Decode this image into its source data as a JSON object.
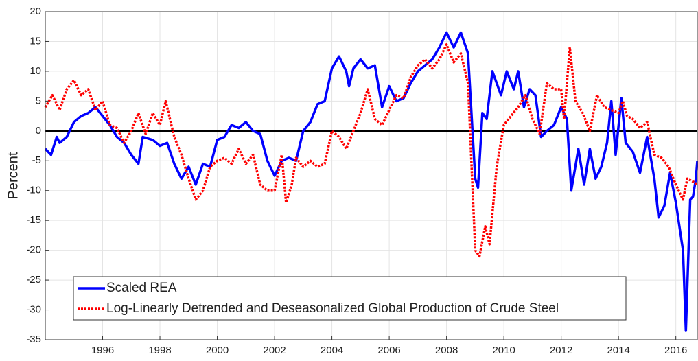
{
  "chart_data": {
    "type": "line",
    "y_label": "Percent",
    "xlim": [
      1994,
      2016.75
    ],
    "xticks": [
      1996,
      1998,
      2000,
      2002,
      2004,
      2006,
      2008,
      2010,
      2012,
      2014,
      2016
    ],
    "ylim": [
      -35,
      20
    ],
    "yticks": [
      20,
      15,
      10,
      5,
      0,
      -5,
      -10,
      -15,
      -20,
      -25,
      -30,
      -35
    ],
    "grid": true,
    "reference_line": 0,
    "legend": "lower-left",
    "series": [
      {
        "name": "Scaled REA",
        "color": "#0000ff",
        "style": "solid",
        "x": [
          1994.0,
          1994.2,
          1994.4,
          1994.5,
          1994.75,
          1995.0,
          1995.25,
          1995.5,
          1995.75,
          1996.0,
          1996.25,
          1996.5,
          1996.75,
          1997.0,
          1997.25,
          1997.4,
          1997.75,
          1998.0,
          1998.25,
          1998.5,
          1998.75,
          1999.0,
          1999.25,
          1999.5,
          1999.75,
          2000.0,
          2000.25,
          2000.5,
          2000.75,
          2001.0,
          2001.25,
          2001.5,
          2001.75,
          2002.0,
          2002.25,
          2002.5,
          2002.75,
          2003.0,
          2003.25,
          2003.5,
          2003.75,
          2004.0,
          2004.25,
          2004.5,
          2004.6,
          2004.75,
          2005.0,
          2005.25,
          2005.5,
          2005.75,
          2006.0,
          2006.25,
          2006.5,
          2006.75,
          2007.0,
          2007.25,
          2007.5,
          2007.75,
          2008.0,
          2008.25,
          2008.5,
          2008.75,
          2009.0,
          2009.1,
          2009.25,
          2009.4,
          2009.6,
          2009.9,
          2010.1,
          2010.35,
          2010.5,
          2010.7,
          2010.9,
          2011.1,
          2011.3,
          2011.5,
          2011.75,
          2012.0,
          2012.2,
          2012.35,
          2012.6,
          2012.8,
          2013.0,
          2013.2,
          2013.4,
          2013.6,
          2013.75,
          2013.9,
          2014.1,
          2014.25,
          2014.5,
          2014.75,
          2015.0,
          2015.25,
          2015.4,
          2015.6,
          2015.8,
          2016.0,
          2016.25,
          2016.35,
          2016.5,
          2016.6,
          2016.7,
          2016.75
        ],
        "values": [
          -3,
          -4,
          -1,
          -2,
          -1,
          1.5,
          2.5,
          3,
          4,
          2.5,
          1,
          -1,
          -2,
          -4,
          -5.5,
          -1,
          -1.5,
          -2.5,
          -2,
          -5.5,
          -8,
          -6,
          -9,
          -5.5,
          -6,
          -1.5,
          -1,
          1,
          0.5,
          1.5,
          0,
          -0.5,
          -5,
          -7.5,
          -5,
          -4.5,
          -5,
          0,
          1.5,
          4.5,
          5,
          10.5,
          12.5,
          10,
          7.5,
          10.5,
          12,
          10.5,
          11,
          4,
          7.5,
          5,
          5.5,
          8,
          10,
          11,
          12,
          14,
          16.5,
          14,
          16.5,
          13,
          -8,
          -9.5,
          3,
          2,
          10,
          6,
          10,
          7,
          10,
          4,
          7,
          6,
          -1,
          0,
          1,
          4,
          2,
          -10,
          -3,
          -9,
          -3,
          -8,
          -6,
          -2,
          5,
          -4,
          5.5,
          -2,
          -3.5,
          -7,
          -1,
          -8,
          -14.5,
          -12.5,
          -7,
          -12,
          -20,
          -33.5,
          -11.5,
          -11,
          -8,
          -5
        ]
      },
      {
        "name": "Log-Linearly Detrended and Deseasonalized Global Production of Crude Steel",
        "color": "#ff0000",
        "style": "dotted",
        "x": [
          1994.0,
          1994.25,
          1994.5,
          1994.75,
          1995.0,
          1995.25,
          1995.5,
          1995.75,
          1996.0,
          1996.25,
          1996.5,
          1996.75,
          1997.0,
          1997.25,
          1997.5,
          1997.75,
          1998.0,
          1998.2,
          1998.5,
          1998.75,
          1999.0,
          1999.25,
          1999.5,
          1999.75,
          2000.0,
          2000.25,
          2000.5,
          2000.75,
          2001.0,
          2001.25,
          2001.5,
          2001.75,
          2002.0,
          2002.25,
          2002.4,
          2002.6,
          2002.75,
          2003.0,
          2003.25,
          2003.5,
          2003.75,
          2004.0,
          2004.25,
          2004.5,
          2004.75,
          2005.0,
          2005.25,
          2005.5,
          2005.75,
          2006.0,
          2006.25,
          2006.5,
          2006.75,
          2007.0,
          2007.25,
          2007.5,
          2007.75,
          2008.0,
          2008.25,
          2008.5,
          2008.75,
          2009.0,
          2009.15,
          2009.35,
          2009.5,
          2009.75,
          2010.0,
          2010.25,
          2010.5,
          2010.75,
          2011.0,
          2011.25,
          2011.5,
          2011.75,
          2012.0,
          2012.1,
          2012.3,
          2012.5,
          2012.75,
          2013.0,
          2013.25,
          2013.5,
          2013.75,
          2014.0,
          2014.15,
          2014.3,
          2014.5,
          2014.75,
          2015.0,
          2015.25,
          2015.5,
          2015.75,
          2016.0,
          2016.25,
          2016.4,
          2016.6,
          2016.75
        ],
        "values": [
          4,
          6,
          3.5,
          7,
          8.5,
          6,
          7,
          3.5,
          5,
          1,
          0.5,
          -2,
          0,
          3,
          -0.5,
          3,
          1,
          5,
          -1,
          -4,
          -8,
          -11.5,
          -10,
          -6,
          -5,
          -4.5,
          -5.5,
          -3,
          -5.5,
          -4,
          -9,
          -10,
          -10,
          -4,
          -12,
          -9,
          -4.5,
          -6,
          -5,
          -6,
          -5.5,
          0,
          -1,
          -3,
          0,
          3,
          7,
          2,
          1,
          3.5,
          6,
          5.5,
          9,
          11,
          12,
          10.5,
          12,
          14.5,
          11.5,
          13,
          8,
          -20,
          -21,
          -16,
          -19,
          -6,
          1,
          2.5,
          4,
          6,
          2,
          -0.5,
          8,
          7,
          7,
          2,
          14,
          5,
          3,
          0,
          6,
          4,
          3.5,
          3,
          5,
          2.5,
          2,
          0.5,
          1.5,
          -4,
          -4.5,
          -6,
          -9,
          -11.5,
          -8,
          -8.5,
          -9
        ]
      }
    ]
  }
}
